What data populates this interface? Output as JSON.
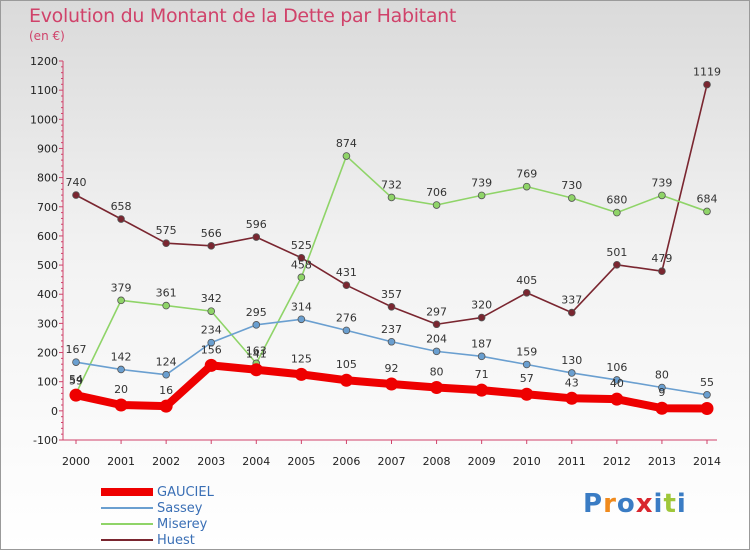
{
  "chart_data": {
    "type": "line",
    "title": "Evolution du Montant de la Dette par Habitant",
    "subtitle": "(en €)",
    "xlabel": "",
    "ylabel": "",
    "ylim": [
      -100,
      1200
    ],
    "yticks": [
      -100,
      0,
      100,
      200,
      300,
      400,
      500,
      600,
      700,
      800,
      900,
      1000,
      1100,
      1200
    ],
    "categories": [
      "2000",
      "2001",
      "2002",
      "2003",
      "2004",
      "2005",
      "2006",
      "2007",
      "2008",
      "2009",
      "2010",
      "2011",
      "2012",
      "2013",
      "2014"
    ],
    "grid": false,
    "legend_position": "bottom-left",
    "series": [
      {
        "name": "GAUCIEL",
        "color": "#ee0000",
        "values": [
          54,
          20,
          16,
          156,
          141,
          125,
          105,
          92,
          80,
          71,
          57,
          43,
          40,
          9,
          8
        ],
        "labels": [
          "54",
          "20",
          "16",
          "156",
          "141",
          "125",
          "105",
          "92",
          "80",
          "71",
          "57",
          "43",
          "40",
          "9",
          ""
        ]
      },
      {
        "name": "Sassey",
        "color": "#6a9fd0",
        "values": [
          167,
          142,
          124,
          234,
          295,
          314,
          276,
          237,
          204,
          187,
          159,
          130,
          106,
          80,
          55
        ],
        "labels": [
          "167",
          "142",
          "124",
          "234",
          "295",
          "314",
          "276",
          "237",
          "204",
          "187",
          "159",
          "130",
          "106",
          "80",
          "55"
        ]
      },
      {
        "name": "Miserey",
        "color": "#8fd468",
        "values": [
          59,
          379,
          361,
          342,
          163,
          458,
          874,
          732,
          706,
          739,
          769,
          730,
          680,
          739,
          684
        ],
        "labels": [
          "59",
          "379",
          "361",
          "342",
          "163",
          "458",
          "874",
          "732",
          "706",
          "739",
          "769",
          "730",
          "680",
          "739",
          "684"
        ]
      },
      {
        "name": "Huest",
        "color": "#7a2630",
        "values": [
          740,
          658,
          575,
          566,
          596,
          525,
          431,
          357,
          297,
          320,
          405,
          337,
          501,
          479,
          1119
        ],
        "labels": [
          "740",
          "658",
          "575",
          "566",
          "596",
          "525",
          "431",
          "357",
          "297",
          "320",
          "405",
          "337",
          "501",
          "479",
          "1119"
        ]
      }
    ]
  },
  "logo": {
    "text": "Proxiti",
    "colors": [
      "#3a7cc4",
      "#f08a1c",
      "#3a7cc4",
      "#d9262e",
      "#3a7cc4",
      "#9fc73a",
      "#3a7cc4"
    ]
  }
}
